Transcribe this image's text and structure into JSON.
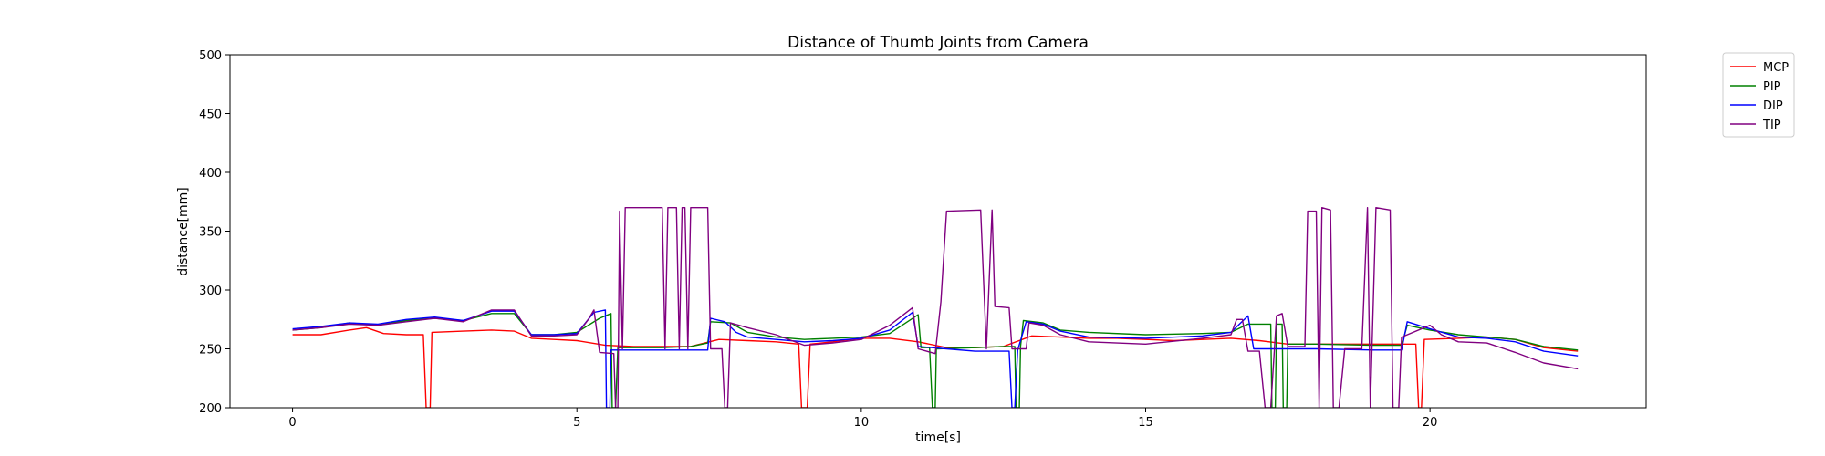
{
  "chart_data": {
    "type": "line",
    "title": "Distance of Thumb Joints from Camera",
    "xlabel": "time[s]",
    "ylabel": "distance[mm]",
    "xlim": [
      -1.1,
      23.8
    ],
    "ylim": [
      200,
      500
    ],
    "xticks": [
      0,
      5,
      10,
      15,
      20
    ],
    "yticks": [
      200,
      250,
      300,
      350,
      400,
      450,
      500
    ],
    "grid": false,
    "legend": "outside-top-right",
    "series": [
      {
        "name": "MCP",
        "color": "#ff0000",
        "points": [
          [
            0,
            262
          ],
          [
            0.5,
            262
          ],
          [
            1,
            266
          ],
          [
            1.3,
            268
          ],
          [
            1.6,
            263
          ],
          [
            2,
            262
          ],
          [
            2.3,
            262
          ],
          [
            2.35,
            200
          ],
          [
            2.42,
            200
          ],
          [
            2.45,
            264
          ],
          [
            3,
            265
          ],
          [
            3.5,
            266
          ],
          [
            3.9,
            265
          ],
          [
            4.2,
            259
          ],
          [
            4.6,
            258
          ],
          [
            5,
            257
          ],
          [
            5.5,
            253
          ],
          [
            6,
            252
          ],
          [
            7,
            252
          ],
          [
            7.5,
            258
          ],
          [
            8,
            257
          ],
          [
            8.5,
            256
          ],
          [
            8.9,
            254
          ],
          [
            8.95,
            200
          ],
          [
            9.05,
            200
          ],
          [
            9.1,
            254
          ],
          [
            9.5,
            256
          ],
          [
            10,
            259
          ],
          [
            10.5,
            259
          ],
          [
            11,
            256
          ],
          [
            11.5,
            251
          ],
          [
            12,
            251
          ],
          [
            12.5,
            252
          ],
          [
            13,
            261
          ],
          [
            13.5,
            260
          ],
          [
            14,
            259
          ],
          [
            14.5,
            259
          ],
          [
            15,
            258
          ],
          [
            15.5,
            257
          ],
          [
            16,
            258
          ],
          [
            16.5,
            259
          ],
          [
            17,
            257
          ],
          [
            17.5,
            254
          ],
          [
            18,
            254
          ],
          [
            18.5,
            254
          ],
          [
            19,
            254
          ],
          [
            19.5,
            254
          ],
          [
            19.75,
            254
          ],
          [
            19.8,
            200
          ],
          [
            19.85,
            200
          ],
          [
            19.9,
            258
          ],
          [
            20.5,
            259
          ],
          [
            21,
            260
          ],
          [
            21.5,
            258
          ],
          [
            22,
            251
          ],
          [
            22.6,
            248
          ]
        ]
      },
      {
        "name": "PIP",
        "color": "#008000",
        "points": [
          [
            0,
            266
          ],
          [
            0.5,
            268
          ],
          [
            1,
            272
          ],
          [
            1.5,
            270
          ],
          [
            2,
            274
          ],
          [
            2.5,
            276
          ],
          [
            3,
            274
          ],
          [
            3.5,
            280
          ],
          [
            3.9,
            280
          ],
          [
            4.2,
            262
          ],
          [
            4.6,
            262
          ],
          [
            5,
            264
          ],
          [
            5.4,
            276
          ],
          [
            5.6,
            280
          ],
          [
            5.62,
            200
          ],
          [
            5.68,
            200
          ],
          [
            5.72,
            251
          ],
          [
            6,
            251
          ],
          [
            6.5,
            251
          ],
          [
            7,
            252
          ],
          [
            7.3,
            255
          ],
          [
            7.35,
            273
          ],
          [
            7.7,
            272
          ],
          [
            8,
            264
          ],
          [
            8.5,
            260
          ],
          [
            9,
            258
          ],
          [
            9.5,
            259
          ],
          [
            10,
            260
          ],
          [
            10.5,
            263
          ],
          [
            11,
            279
          ],
          [
            11.05,
            251
          ],
          [
            11.2,
            251
          ],
          [
            11.25,
            200
          ],
          [
            11.3,
            200
          ],
          [
            11.32,
            250
          ],
          [
            12,
            251
          ],
          [
            12.5,
            252
          ],
          [
            12.7,
            252
          ],
          [
            12.72,
            200
          ],
          [
            12.78,
            200
          ],
          [
            12.8,
            252
          ],
          [
            12.85,
            274
          ],
          [
            13.2,
            272
          ],
          [
            13.5,
            266
          ],
          [
            14,
            264
          ],
          [
            15,
            262
          ],
          [
            16,
            263
          ],
          [
            16.5,
            264
          ],
          [
            16.8,
            271
          ],
          [
            17.2,
            271
          ],
          [
            17.22,
            200
          ],
          [
            17.28,
            200
          ],
          [
            17.3,
            271
          ],
          [
            17.4,
            271
          ],
          [
            17.42,
            200
          ],
          [
            17.48,
            200
          ],
          [
            17.5,
            254
          ],
          [
            18,
            254
          ],
          [
            19,
            253
          ],
          [
            19.5,
            253
          ],
          [
            19.6,
            270
          ],
          [
            20,
            266
          ],
          [
            20.5,
            262
          ],
          [
            21,
            260
          ],
          [
            21.5,
            258
          ],
          [
            22,
            252
          ],
          [
            22.6,
            249
          ]
        ]
      },
      {
        "name": "DIP",
        "color": "#0000ff",
        "points": [
          [
            0,
            267
          ],
          [
            0.5,
            269
          ],
          [
            1,
            272
          ],
          [
            1.5,
            271
          ],
          [
            2,
            275
          ],
          [
            2.5,
            277
          ],
          [
            3,
            274
          ],
          [
            3.5,
            282
          ],
          [
            3.9,
            282
          ],
          [
            4.2,
            262
          ],
          [
            4.6,
            262
          ],
          [
            5,
            263
          ],
          [
            5.3,
            281
          ],
          [
            5.5,
            283
          ],
          [
            5.52,
            200
          ],
          [
            5.58,
            200
          ],
          [
            5.6,
            249
          ],
          [
            6,
            249
          ],
          [
            6.5,
            249
          ],
          [
            7,
            249
          ],
          [
            7.3,
            249
          ],
          [
            7.35,
            276
          ],
          [
            7.6,
            273
          ],
          [
            7.8,
            264
          ],
          [
            8,
            260
          ],
          [
            8.5,
            258
          ],
          [
            9,
            256
          ],
          [
            9.5,
            257
          ],
          [
            10,
            259
          ],
          [
            10.5,
            266
          ],
          [
            10.9,
            281
          ],
          [
            11,
            252
          ],
          [
            11.5,
            250
          ],
          [
            12,
            248
          ],
          [
            12.5,
            248
          ],
          [
            12.6,
            248
          ],
          [
            12.65,
            200
          ],
          [
            12.7,
            200
          ],
          [
            12.75,
            249
          ],
          [
            12.9,
            273
          ],
          [
            13.2,
            271
          ],
          [
            13.5,
            265
          ],
          [
            14,
            260
          ],
          [
            15,
            259
          ],
          [
            16,
            261
          ],
          [
            16.5,
            264
          ],
          [
            16.8,
            278
          ],
          [
            16.9,
            250
          ],
          [
            17.5,
            250
          ],
          [
            18,
            250
          ],
          [
            19,
            249
          ],
          [
            19.5,
            249
          ],
          [
            19.6,
            273
          ],
          [
            20,
            267
          ],
          [
            20.5,
            260
          ],
          [
            21,
            259
          ],
          [
            21.5,
            256
          ],
          [
            22,
            248
          ],
          [
            22.6,
            244
          ]
        ]
      },
      {
        "name": "TIP",
        "color": "#800080",
        "points": [
          [
            0,
            266
          ],
          [
            0.5,
            268
          ],
          [
            1,
            271
          ],
          [
            1.5,
            270
          ],
          [
            2,
            273
          ],
          [
            2.5,
            276
          ],
          [
            3,
            273
          ],
          [
            3.5,
            283
          ],
          [
            3.9,
            283
          ],
          [
            4.2,
            261
          ],
          [
            4.6,
            261
          ],
          [
            5,
            262
          ],
          [
            5.2,
            275
          ],
          [
            5.3,
            283
          ],
          [
            5.4,
            247
          ],
          [
            5.65,
            246
          ],
          [
            5.68,
            200
          ],
          [
            5.72,
            200
          ],
          [
            5.75,
            367
          ],
          [
            5.8,
            250
          ],
          [
            5.85,
            370
          ],
          [
            6.5,
            370
          ],
          [
            6.55,
            250
          ],
          [
            6.6,
            370
          ],
          [
            6.75,
            370
          ],
          [
            6.8,
            250
          ],
          [
            6.85,
            370
          ],
          [
            6.9,
            370
          ],
          [
            6.95,
            250
          ],
          [
            7,
            370
          ],
          [
            7.3,
            370
          ],
          [
            7.35,
            250
          ],
          [
            7.55,
            250
          ],
          [
            7.6,
            200
          ],
          [
            7.65,
            200
          ],
          [
            7.7,
            272
          ],
          [
            8,
            268
          ],
          [
            8.5,
            262
          ],
          [
            9,
            253
          ],
          [
            9.5,
            255
          ],
          [
            10,
            258
          ],
          [
            10.5,
            270
          ],
          [
            10.9,
            285
          ],
          [
            11,
            250
          ],
          [
            11.3,
            246
          ],
          [
            11.4,
            290
          ],
          [
            11.5,
            367
          ],
          [
            12.1,
            368
          ],
          [
            12.2,
            250
          ],
          [
            12.3,
            368
          ],
          [
            12.35,
            286
          ],
          [
            12.6,
            285
          ],
          [
            12.65,
            250
          ],
          [
            12.9,
            250
          ],
          [
            12.95,
            272
          ],
          [
            13.2,
            270
          ],
          [
            13.5,
            262
          ],
          [
            14,
            256
          ],
          [
            15,
            254
          ],
          [
            16,
            259
          ],
          [
            16.5,
            262
          ],
          [
            16.6,
            275
          ],
          [
            16.7,
            275
          ],
          [
            16.8,
            248
          ],
          [
            17,
            248
          ],
          [
            17.1,
            200
          ],
          [
            17.2,
            200
          ],
          [
            17.3,
            278
          ],
          [
            17.4,
            280
          ],
          [
            17.5,
            252
          ],
          [
            17.8,
            252
          ],
          [
            17.85,
            367
          ],
          [
            18,
            367
          ],
          [
            18.05,
            200
          ],
          [
            18.1,
            370
          ],
          [
            18.25,
            368
          ],
          [
            18.3,
            200
          ],
          [
            18.4,
            200
          ],
          [
            18.5,
            250
          ],
          [
            18.8,
            250
          ],
          [
            18.9,
            370
          ],
          [
            18.95,
            200
          ],
          [
            19.05,
            370
          ],
          [
            19.3,
            368
          ],
          [
            19.35,
            200
          ],
          [
            19.45,
            200
          ],
          [
            19.5,
            260
          ],
          [
            20,
            270
          ],
          [
            20.2,
            262
          ],
          [
            20.5,
            256
          ],
          [
            21,
            255
          ],
          [
            21.5,
            247
          ],
          [
            22,
            238
          ],
          [
            22.6,
            233
          ]
        ]
      }
    ]
  }
}
